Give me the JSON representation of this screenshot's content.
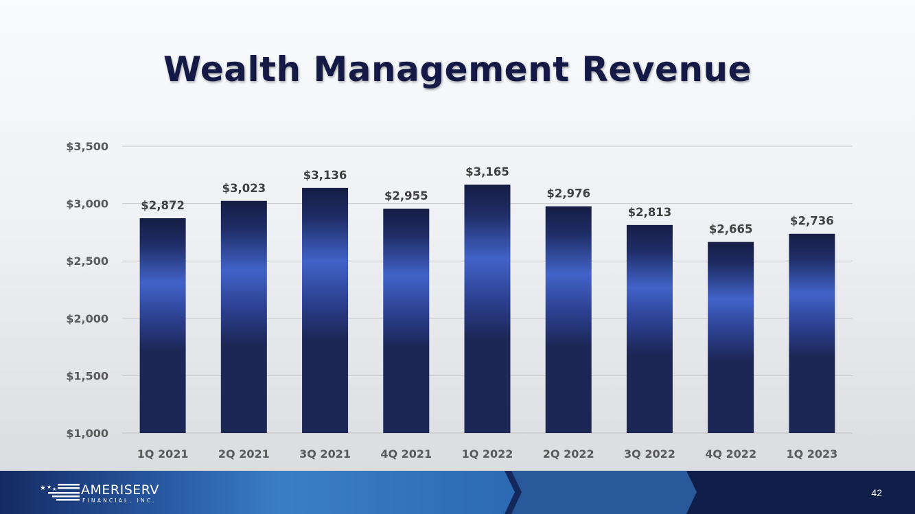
{
  "slide": {
    "title": "Wealth Management Revenue",
    "page_number": "42"
  },
  "logo": {
    "name": "AMERISERV",
    "subtitle": "FINANCIAL, INC."
  },
  "colors": {
    "title": "#141a45",
    "bar_dark": "#1c2756",
    "bar_mid": "#4163c8",
    "grid": "#c8c8c8",
    "footer_dark": "#14285c",
    "footer_light": "#3a7cc4"
  },
  "chart_data": {
    "type": "bar",
    "title": "Wealth Management Revenue",
    "categories": [
      "1Q 2021",
      "2Q 2021",
      "3Q 2021",
      "4Q 2021",
      "1Q 2022",
      "2Q 2022",
      "3Q 2022",
      "4Q 2022",
      "1Q 2023"
    ],
    "values": [
      2872,
      3023,
      3136,
      2955,
      3165,
      2976,
      2813,
      2665,
      2736
    ],
    "data_labels": [
      "$2,872",
      "$3,023",
      "$3,136",
      "$2,955",
      "$3,165",
      "$2,976",
      "$2,813",
      "$2,665",
      "$2,736"
    ],
    "ylim": [
      1000,
      3500
    ],
    "yticks": [
      1000,
      1500,
      2000,
      2500,
      3000,
      3500
    ],
    "ytick_labels": [
      "$1,000",
      "$1,500",
      "$2,000",
      "$2,500",
      "$3,000",
      "$3,500"
    ],
    "xlabel": "",
    "ylabel": "",
    "grid": true,
    "legend": "none"
  }
}
